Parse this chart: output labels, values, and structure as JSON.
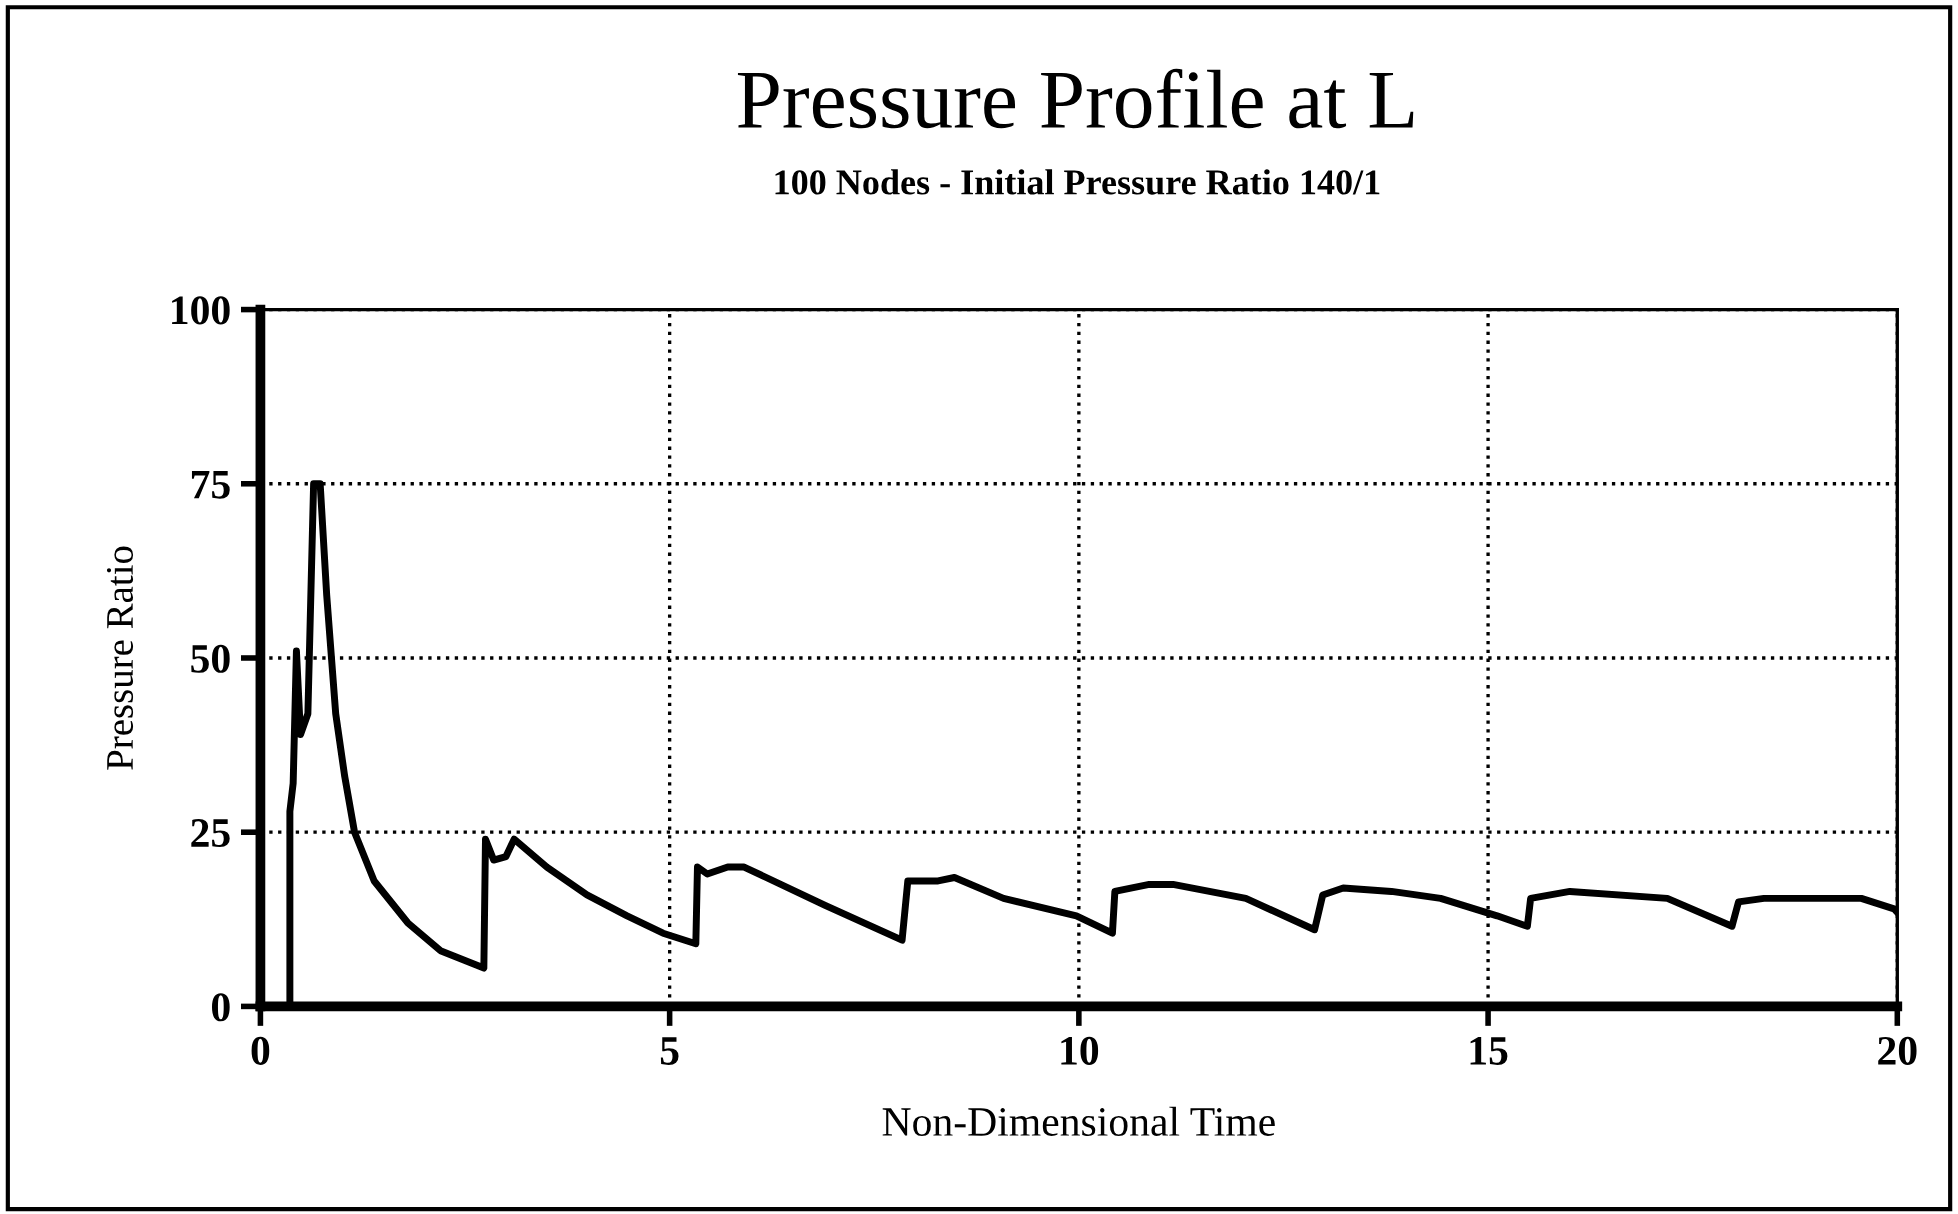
{
  "chart_data": {
    "type": "line",
    "title": "Pressure Profile at L",
    "subtitle": "100 Nodes - Initial Pressure Ratio 140/1",
    "xlabel": "Non-Dimensional Time",
    "ylabel": "Pressure Ratio",
    "xlim": [
      0,
      20
    ],
    "ylim": [
      0,
      100
    ],
    "xticks": [
      0,
      5,
      10,
      15,
      20
    ],
    "yticks": [
      0,
      25,
      50,
      75,
      100
    ],
    "grid": true,
    "legend": false,
    "marker": "none",
    "line_style": "solid",
    "series": [
      {
        "color": "#000000",
        "x": [
          0.36,
          0.36,
          0.4,
          0.44,
          0.49,
          0.58,
          0.65,
          0.73,
          0.81,
          0.92,
          1.03,
          1.15,
          1.39,
          1.8,
          2.2,
          2.73,
          2.75,
          2.85,
          3.0,
          3.1,
          3.5,
          3.99,
          4.48,
          4.92,
          5.32,
          5.34,
          5.46,
          5.71,
          5.91,
          6.9,
          7.84,
          7.91,
          8.28,
          8.48,
          9.08,
          9.97,
          10.41,
          10.44,
          10.86,
          11.15,
          12.04,
          12.88,
          12.98,
          13.23,
          13.82,
          14.42,
          15.11,
          15.48,
          15.52,
          16.0,
          17.19,
          17.98,
          18.06,
          18.37,
          19.56,
          19.96,
          20.0
        ],
        "values": [
          0,
          28,
          32,
          51,
          39,
          42,
          75,
          75,
          59,
          42,
          33,
          25,
          18,
          12,
          8,
          5.5,
          24,
          21,
          21.5,
          24,
          20,
          16,
          13,
          10.5,
          9,
          20,
          19,
          20,
          20,
          14.5,
          9.5,
          18,
          18,
          18.5,
          15.5,
          13,
          10.5,
          16.5,
          17.5,
          17.5,
          15.5,
          11,
          16,
          17,
          16.5,
          15.5,
          13,
          11.5,
          15.5,
          16.5,
          15.5,
          11.5,
          15,
          15.5,
          15.5,
          14,
          13.5
        ]
      }
    ]
  }
}
